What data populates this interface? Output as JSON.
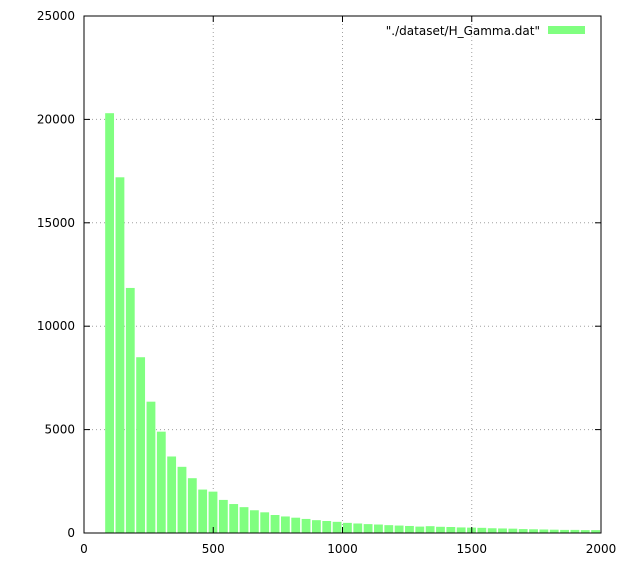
{
  "chart_data": {
    "type": "bar",
    "title": "",
    "xlabel": "",
    "ylabel": "",
    "xlim": [
      0,
      2000
    ],
    "ylim": [
      0,
      25000
    ],
    "xticks": [
      0,
      500,
      1000,
      1500,
      2000
    ],
    "yticks": [
      0,
      5000,
      10000,
      15000,
      20000,
      25000
    ],
    "xtick_labels": [
      "0",
      "500",
      "1000",
      "1500",
      "2000"
    ],
    "ytick_labels": [
      "0",
      "5000",
      "10000",
      "15000",
      "20000",
      "25000"
    ],
    "grid": true,
    "legend_position": "top-right",
    "bar_color": "#80ff80",
    "bin_width": 40,
    "series": [
      {
        "name": "\"./dataset/H_Gamma.dat\"",
        "x": [
          100,
          140,
          180,
          220,
          260,
          300,
          340,
          380,
          420,
          460,
          500,
          540,
          580,
          620,
          660,
          700,
          740,
          780,
          820,
          860,
          900,
          940,
          980,
          1020,
          1060,
          1100,
          1140,
          1180,
          1220,
          1260,
          1300,
          1340,
          1380,
          1420,
          1460,
          1500,
          1540,
          1580,
          1620,
          1660,
          1700,
          1740,
          1780,
          1820,
          1860,
          1900,
          1940,
          1980
        ],
        "values": [
          20300,
          17200,
          11850,
          8500,
          6350,
          4900,
          3700,
          3200,
          2650,
          2100,
          2000,
          1600,
          1400,
          1250,
          1100,
          1000,
          870,
          800,
          740,
          680,
          620,
          580,
          540,
          490,
          460,
          430,
          410,
          380,
          360,
          340,
          310,
          330,
          300,
          290,
          270,
          260,
          250,
          230,
          220,
          210,
          190,
          180,
          170,
          160,
          150,
          150,
          140,
          140
        ]
      }
    ]
  }
}
